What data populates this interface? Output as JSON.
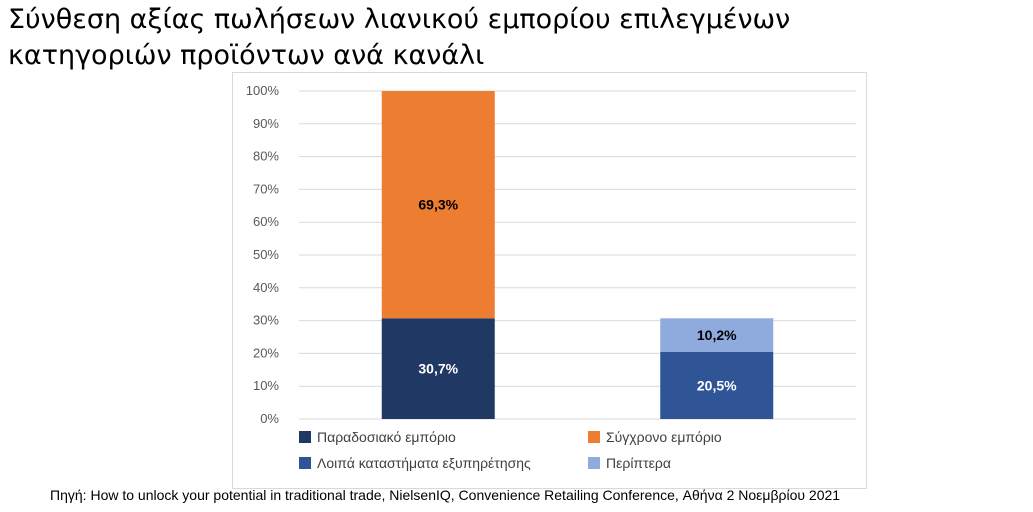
{
  "title_lines": [
    "Σύνθεση αξίας πωλήσεων λιανικού εμπορίου επιλεγμένων",
    "κατηγοριών προϊόντων ανά κανάλι"
  ],
  "source": "Πηγή: How to unlock your potential in traditional trade, NielsenIQ, Convenience Retailing Conference, Αθήνα 2 Νοεμβρίου 2021",
  "chart_data": {
    "type": "bar",
    "stacked": true,
    "title": "Σύνθεση αξίας πωλήσεων λιανικού εμπορίου επιλεγμένων κατηγοριών προϊόντων ανά κανάλι",
    "xlabel": "",
    "ylabel": "",
    "ylim": [
      0,
      100
    ],
    "y_ticks": [
      "0%",
      "10%",
      "20%",
      "30%",
      "40%",
      "50%",
      "60%",
      "70%",
      "80%",
      "90%",
      "100%"
    ],
    "grid": true,
    "legend_position": "bottom",
    "categories": [
      "",
      ""
    ],
    "series": [
      {
        "name": "Παραδοσιακό εμπόριο",
        "color": "#203864",
        "label_color": "#ffffff",
        "values": [
          30.7,
          null
        ],
        "labels": [
          "30,7%",
          ""
        ]
      },
      {
        "name": "Σύγχρονο εμπόριο",
        "color": "#ed7d31",
        "label_color": "#000000",
        "values": [
          69.3,
          null
        ],
        "labels": [
          "69,3%",
          ""
        ]
      },
      {
        "name": "Λοιπά καταστήματα εξυπηρέτησης",
        "color": "#2f5597",
        "label_color": "#ffffff",
        "values": [
          null,
          20.5
        ],
        "labels": [
          "",
          "20,5%"
        ]
      },
      {
        "name": "Περίπτερα",
        "color": "#8faadc",
        "label_color": "#000000",
        "values": [
          null,
          10.2
        ],
        "labels": [
          "",
          "10,2%"
        ]
      }
    ]
  }
}
